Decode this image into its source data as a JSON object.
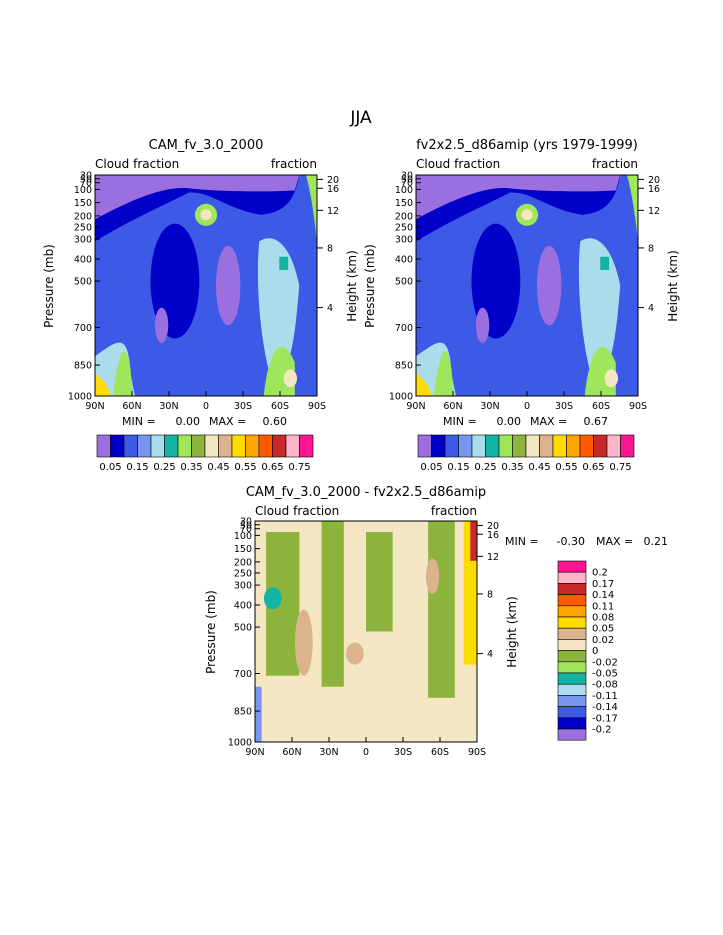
{
  "page": {
    "title": "JJA"
  },
  "palettes": {
    "main": [
      "#9b6fe0",
      "#0000c8",
      "#3c5ae6",
      "#7896f0",
      "#aadcec",
      "#14b4a5",
      "#a0e65a",
      "#8cb43c",
      "#f5e6c3",
      "#dcb48c",
      "#ffdc00",
      "#ffa500",
      "#ff5a00",
      "#c82828",
      "#ffb4c8",
      "#ff1493"
    ],
    "diff": [
      "#9b6fe0",
      "#0000c8",
      "#3c5ae6",
      "#7896f0",
      "#aadcec",
      "#14b4a5",
      "#a0e65a",
      "#8cb43c",
      "#f5e6c3",
      "#dcb48c",
      "#ffdc00",
      "#ffa500",
      "#ff5a00",
      "#c82828",
      "#ffb4c8",
      "#ff1493"
    ]
  },
  "chart_data": [
    {
      "type": "heatmap",
      "title": "CAM_fv_3.0_2000",
      "left_label": "Cloud fraction",
      "right_label": "fraction",
      "ylabel": "Pressure (mb)",
      "ylabel_right": "Height (km)",
      "x_ticks": [
        "90N",
        "60N",
        "30N",
        "0",
        "30S",
        "60S",
        "90S"
      ],
      "y_ticks": [
        "1000",
        "850",
        "700",
        "500",
        "400",
        "300",
        "250",
        "200",
        "150",
        "100",
        "70",
        "50",
        "30"
      ],
      "y_ticks_right": [
        "4",
        "8",
        "12",
        "16",
        "20"
      ],
      "min_label": "MIN =",
      "min_value": "0.00",
      "max_label": "MAX =",
      "max_value": "0.60",
      "colorbar_labels": [
        "0.05",
        "0.15",
        "0.25",
        "0.35",
        "0.45",
        "0.55",
        "0.65",
        "0.75"
      ]
    },
    {
      "type": "heatmap",
      "title": "fv2x2.5_d86amip (yrs 1979-1999)",
      "left_label": "Cloud fraction",
      "right_label": "fraction",
      "ylabel": "Pressure (mb)",
      "ylabel_right": "Height (km)",
      "x_ticks": [
        "90N",
        "60N",
        "30N",
        "0",
        "30S",
        "60S",
        "90S"
      ],
      "y_ticks": [
        "1000",
        "850",
        "700",
        "500",
        "400",
        "300",
        "250",
        "200",
        "150",
        "100",
        "70",
        "50",
        "30"
      ],
      "y_ticks_right": [
        "4",
        "8",
        "12",
        "16",
        "20"
      ],
      "min_label": "MIN =",
      "min_value": "0.00",
      "max_label": "MAX =",
      "max_value": "0.67",
      "colorbar_labels": [
        "0.05",
        "0.15",
        "0.25",
        "0.35",
        "0.45",
        "0.55",
        "0.65",
        "0.75"
      ]
    },
    {
      "type": "heatmap",
      "title": "CAM_fv_3.0_2000 - fv2x2.5_d86amip",
      "left_label": "Cloud fraction",
      "right_label": "fraction",
      "ylabel": "Pressure (mb)",
      "ylabel_right": "Height (km)",
      "x_ticks": [
        "90N",
        "60N",
        "30N",
        "0",
        "30S",
        "60S",
        "90S"
      ],
      "y_ticks": [
        "1000",
        "850",
        "700",
        "500",
        "400",
        "300",
        "250",
        "200",
        "150",
        "100",
        "70",
        "50",
        "30"
      ],
      "y_ticks_right": [
        "4",
        "8",
        "12",
        "16",
        "20"
      ],
      "min_label": "MIN =",
      "min_value": "-0.30",
      "max_label": "MAX =",
      "max_value": "0.21",
      "colorbar_labels": [
        "0.2",
        "0.17",
        "0.14",
        "0.11",
        "0.08",
        "0.05",
        "0.02",
        "0",
        "-0.02",
        "-0.05",
        "-0.08",
        "-0.11",
        "-0.14",
        "-0.17",
        "-0.2"
      ]
    }
  ]
}
